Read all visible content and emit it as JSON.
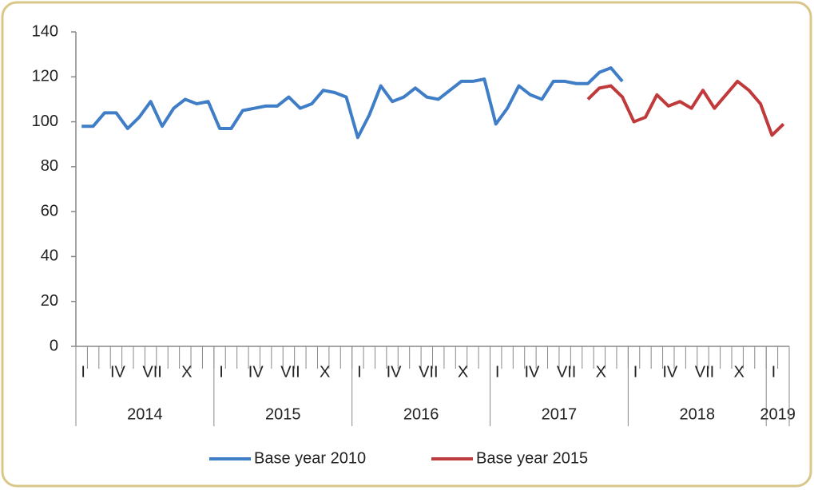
{
  "chart_data": {
    "type": "line",
    "categories": [
      "I",
      null,
      null,
      "IV",
      null,
      null,
      "VII",
      null,
      null,
      "X",
      null,
      null,
      "I",
      null,
      null,
      "IV",
      null,
      null,
      "VII",
      null,
      null,
      "X",
      null,
      null,
      "I",
      null,
      null,
      "IV",
      null,
      null,
      "VII",
      null,
      null,
      "X",
      null,
      null,
      "I",
      null,
      null,
      "IV",
      null,
      null,
      "VII",
      null,
      null,
      "X",
      null,
      null,
      "I",
      null,
      null,
      "IV",
      null,
      null,
      "VII",
      null,
      null,
      "X",
      null,
      null,
      "I",
      null
    ],
    "year_groups": [
      {
        "label": "2014",
        "count": 12
      },
      {
        "label": "2015",
        "count": 12
      },
      {
        "label": "2016",
        "count": 12
      },
      {
        "label": "2017",
        "count": 12
      },
      {
        "label": "2018",
        "count": 12
      },
      {
        "label": "2019",
        "count": 2
      }
    ],
    "series": [
      {
        "name": "Base year 2010",
        "color": "#3f7ec6",
        "values": [
          98,
          98,
          104,
          104,
          97,
          102,
          109,
          98,
          106,
          110,
          108,
          109,
          97,
          97,
          105,
          106,
          107,
          107,
          111,
          106,
          108,
          114,
          113,
          111,
          93,
          103,
          116,
          109,
          111,
          115,
          111,
          110,
          114,
          118,
          118,
          119,
          99,
          106,
          116,
          112,
          110,
          118,
          118,
          117,
          117,
          122,
          124,
          118,
          null,
          null,
          null,
          null,
          null,
          null,
          null,
          null,
          null,
          null,
          null,
          null,
          null,
          null
        ]
      },
      {
        "name": "Base year 2015",
        "color": "#c0393b",
        "values": [
          null,
          null,
          null,
          null,
          null,
          null,
          null,
          null,
          null,
          null,
          null,
          null,
          null,
          null,
          null,
          null,
          null,
          null,
          null,
          null,
          null,
          null,
          null,
          null,
          null,
          null,
          null,
          null,
          null,
          null,
          null,
          null,
          null,
          null,
          null,
          null,
          null,
          null,
          null,
          null,
          null,
          null,
          null,
          null,
          110,
          115,
          116,
          111,
          100,
          102,
          112,
          107,
          109,
          106,
          114,
          106,
          112,
          118,
          114,
          108,
          94,
          99
        ]
      }
    ],
    "ylim": [
      0,
      140
    ],
    "yticks": [
      0,
      20,
      40,
      60,
      80,
      100,
      120,
      140
    ],
    "grid": false,
    "legend": "bottom"
  }
}
